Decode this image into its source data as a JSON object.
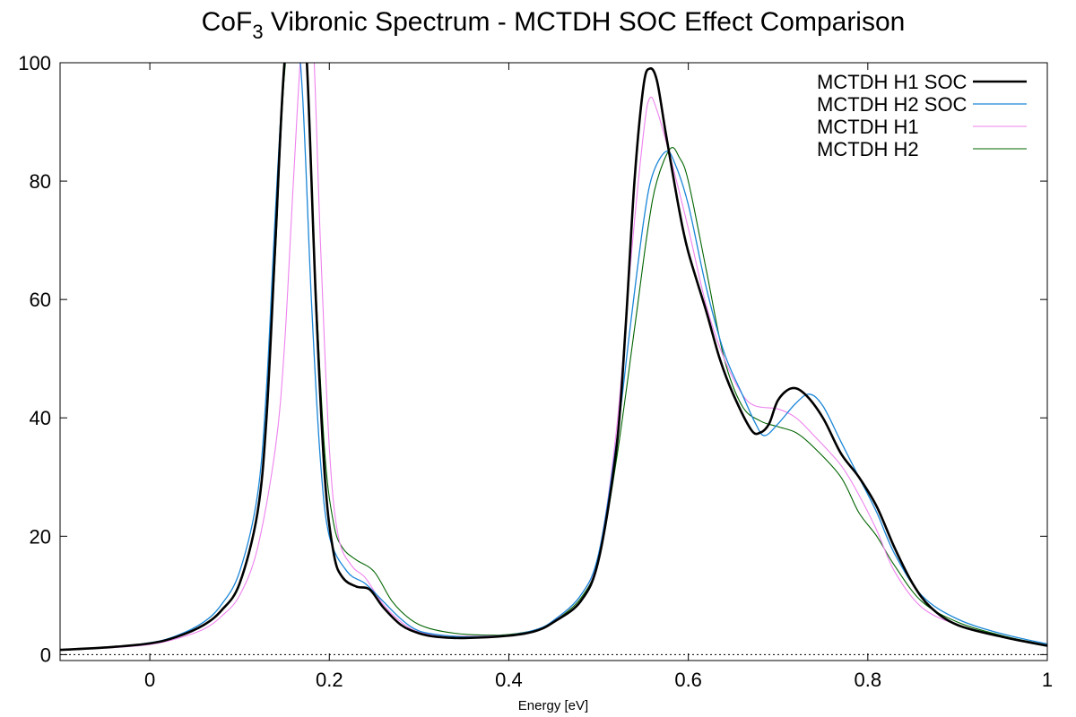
{
  "chart_data": {
    "type": "line",
    "title_main": "CoF",
    "title_sub": "3",
    "title_rest": " Vibronic Spectrum - MCTDH SOC Effect Comparison",
    "xlabel": "Energy [eV]",
    "ylabel": "",
    "xlim": [
      -0.1,
      1.0
    ],
    "ylim": [
      -1,
      100
    ],
    "xticks": [
      0,
      0.2,
      0.4,
      0.6,
      0.8,
      1.0
    ],
    "xtick_labels": [
      "0",
      "0.2",
      "0.4",
      "0.6",
      "0.8",
      "1"
    ],
    "yticks": [
      0,
      20,
      40,
      60,
      80,
      100
    ],
    "ytick_labels": [
      "0",
      "20",
      "40",
      "60",
      "80",
      "100"
    ],
    "grid": false,
    "zero_line": "dotted",
    "legend_position": "top-right",
    "series": [
      {
        "name": "MCTDH H1 SOC",
        "color": "#000000",
        "width": 2.6,
        "points": [
          [
            -0.1,
            0.8
          ],
          [
            -0.05,
            1.2
          ],
          [
            0,
            1.9
          ],
          [
            0.03,
            3.0
          ],
          [
            0.06,
            5.0
          ],
          [
            0.08,
            7.5
          ],
          [
            0.1,
            12
          ],
          [
            0.12,
            24
          ],
          [
            0.13,
            40
          ],
          [
            0.14,
            70
          ],
          [
            0.15,
            100
          ],
          [
            0.165,
            120
          ],
          [
            0.175,
            100
          ],
          [
            0.185,
            60
          ],
          [
            0.195,
            30
          ],
          [
            0.205,
            17
          ],
          [
            0.215,
            13
          ],
          [
            0.23,
            11.5
          ],
          [
            0.245,
            11
          ],
          [
            0.26,
            8
          ],
          [
            0.28,
            5
          ],
          [
            0.3,
            3.6
          ],
          [
            0.32,
            3.0
          ],
          [
            0.35,
            2.8
          ],
          [
            0.4,
            3.2
          ],
          [
            0.43,
            4.0
          ],
          [
            0.45,
            5.5
          ],
          [
            0.48,
            9
          ],
          [
            0.5,
            16
          ],
          [
            0.52,
            35
          ],
          [
            0.53,
            55
          ],
          [
            0.54,
            80
          ],
          [
            0.55,
            96
          ],
          [
            0.557,
            99
          ],
          [
            0.565,
            97
          ],
          [
            0.575,
            88
          ],
          [
            0.59,
            75
          ],
          [
            0.6,
            68
          ],
          [
            0.62,
            58
          ],
          [
            0.635,
            50
          ],
          [
            0.65,
            44
          ],
          [
            0.67,
            38
          ],
          [
            0.68,
            37.5
          ],
          [
            0.69,
            39
          ],
          [
            0.7,
            43
          ],
          [
            0.715,
            45
          ],
          [
            0.73,
            44
          ],
          [
            0.75,
            40
          ],
          [
            0.77,
            34
          ],
          [
            0.79,
            30
          ],
          [
            0.81,
            25
          ],
          [
            0.83,
            18
          ],
          [
            0.85,
            12
          ],
          [
            0.87,
            8
          ],
          [
            0.9,
            5
          ],
          [
            0.95,
            3
          ],
          [
            1.0,
            1.5
          ]
        ]
      },
      {
        "name": "MCTDH H2 SOC",
        "color": "#1a86d8",
        "width": 1.3,
        "points": [
          [
            -0.1,
            0.8
          ],
          [
            -0.05,
            1.2
          ],
          [
            0,
            2.0
          ],
          [
            0.03,
            3.2
          ],
          [
            0.06,
            5.5
          ],
          [
            0.08,
            8.5
          ],
          [
            0.1,
            14
          ],
          [
            0.12,
            27
          ],
          [
            0.13,
            45
          ],
          [
            0.14,
            75
          ],
          [
            0.15,
            100
          ],
          [
            0.16,
            110
          ],
          [
            0.17,
            95
          ],
          [
            0.18,
            60
          ],
          [
            0.19,
            33
          ],
          [
            0.2,
            20
          ],
          [
            0.22,
            14
          ],
          [
            0.24,
            12
          ],
          [
            0.26,
            9
          ],
          [
            0.28,
            6
          ],
          [
            0.3,
            4
          ],
          [
            0.33,
            3.2
          ],
          [
            0.36,
            3.0
          ],
          [
            0.4,
            3.3
          ],
          [
            0.43,
            4.2
          ],
          [
            0.45,
            5.8
          ],
          [
            0.48,
            10
          ],
          [
            0.5,
            17
          ],
          [
            0.52,
            36
          ],
          [
            0.535,
            55
          ],
          [
            0.55,
            73
          ],
          [
            0.56,
            81
          ],
          [
            0.575,
            85
          ],
          [
            0.585,
            83
          ],
          [
            0.6,
            76
          ],
          [
            0.62,
            62
          ],
          [
            0.64,
            51
          ],
          [
            0.66,
            44
          ],
          [
            0.675,
            39
          ],
          [
            0.685,
            37
          ],
          [
            0.7,
            39
          ],
          [
            0.72,
            42.5
          ],
          [
            0.735,
            44
          ],
          [
            0.75,
            42
          ],
          [
            0.77,
            36
          ],
          [
            0.79,
            30
          ],
          [
            0.81,
            24
          ],
          [
            0.83,
            17
          ],
          [
            0.86,
            10
          ],
          [
            0.9,
            6
          ],
          [
            0.95,
            3.5
          ],
          [
            1.0,
            1.8
          ]
        ]
      },
      {
        "name": "MCTDH H1",
        "color": "#ee82ee",
        "width": 1.1,
        "points": [
          [
            -0.1,
            0.8
          ],
          [
            -0.05,
            1.1
          ],
          [
            0,
            1.7
          ],
          [
            0.03,
            2.7
          ],
          [
            0.06,
            4.3
          ],
          [
            0.08,
            6.5
          ],
          [
            0.1,
            10
          ],
          [
            0.12,
            18
          ],
          [
            0.14,
            35
          ],
          [
            0.15,
            52
          ],
          [
            0.16,
            80
          ],
          [
            0.17,
            105
          ],
          [
            0.18,
            110
          ],
          [
            0.19,
            70
          ],
          [
            0.2,
            35
          ],
          [
            0.21,
            20
          ],
          [
            0.225,
            15
          ],
          [
            0.24,
            13
          ],
          [
            0.26,
            8.5
          ],
          [
            0.28,
            5.5
          ],
          [
            0.3,
            3.8
          ],
          [
            0.33,
            3.2
          ],
          [
            0.36,
            3.1
          ],
          [
            0.4,
            3.3
          ],
          [
            0.43,
            4.2
          ],
          [
            0.45,
            5.7
          ],
          [
            0.48,
            10
          ],
          [
            0.5,
            17
          ],
          [
            0.52,
            38
          ],
          [
            0.535,
            65
          ],
          [
            0.55,
            88
          ],
          [
            0.557,
            94
          ],
          [
            0.565,
            92
          ],
          [
            0.58,
            84
          ],
          [
            0.6,
            72
          ],
          [
            0.62,
            59
          ],
          [
            0.64,
            50
          ],
          [
            0.66,
            44
          ],
          [
            0.675,
            42
          ],
          [
            0.7,
            41.5
          ],
          [
            0.72,
            40
          ],
          [
            0.74,
            37
          ],
          [
            0.77,
            32
          ],
          [
            0.79,
            27
          ],
          [
            0.81,
            21
          ],
          [
            0.83,
            14
          ],
          [
            0.86,
            8
          ],
          [
            0.9,
            5
          ],
          [
            0.95,
            3
          ],
          [
            1.0,
            1.5
          ]
        ]
      },
      {
        "name": "MCTDH H2",
        "color": "#006400",
        "width": 1.1,
        "points": [
          [
            -0.1,
            0.8
          ],
          [
            -0.05,
            1.2
          ],
          [
            0,
            1.9
          ],
          [
            0.03,
            3.0
          ],
          [
            0.06,
            5.0
          ],
          [
            0.08,
            7.5
          ],
          [
            0.1,
            12
          ],
          [
            0.12,
            24
          ],
          [
            0.13,
            40
          ],
          [
            0.14,
            68
          ],
          [
            0.15,
            98
          ],
          [
            0.165,
            115
          ],
          [
            0.175,
            100
          ],
          [
            0.185,
            62
          ],
          [
            0.195,
            34
          ],
          [
            0.205,
            22
          ],
          [
            0.215,
            18
          ],
          [
            0.23,
            16
          ],
          [
            0.25,
            14
          ],
          [
            0.27,
            9
          ],
          [
            0.29,
            6
          ],
          [
            0.31,
            4.5
          ],
          [
            0.34,
            3.6
          ],
          [
            0.37,
            3.3
          ],
          [
            0.4,
            3.4
          ],
          [
            0.43,
            4.2
          ],
          [
            0.45,
            5.6
          ],
          [
            0.48,
            9.5
          ],
          [
            0.5,
            16
          ],
          [
            0.52,
            33
          ],
          [
            0.54,
            55
          ],
          [
            0.555,
            72
          ],
          [
            0.565,
            80
          ],
          [
            0.58,
            85.5
          ],
          [
            0.59,
            84
          ],
          [
            0.6,
            80
          ],
          [
            0.62,
            65
          ],
          [
            0.64,
            50
          ],
          [
            0.66,
            42
          ],
          [
            0.68,
            39.5
          ],
          [
            0.7,
            38.5
          ],
          [
            0.72,
            37.5
          ],
          [
            0.74,
            35
          ],
          [
            0.77,
            30
          ],
          [
            0.79,
            24
          ],
          [
            0.81,
            20
          ],
          [
            0.83,
            15
          ],
          [
            0.86,
            9
          ],
          [
            0.9,
            5.5
          ],
          [
            0.95,
            3.2
          ],
          [
            1.0,
            1.6
          ]
        ]
      }
    ]
  }
}
